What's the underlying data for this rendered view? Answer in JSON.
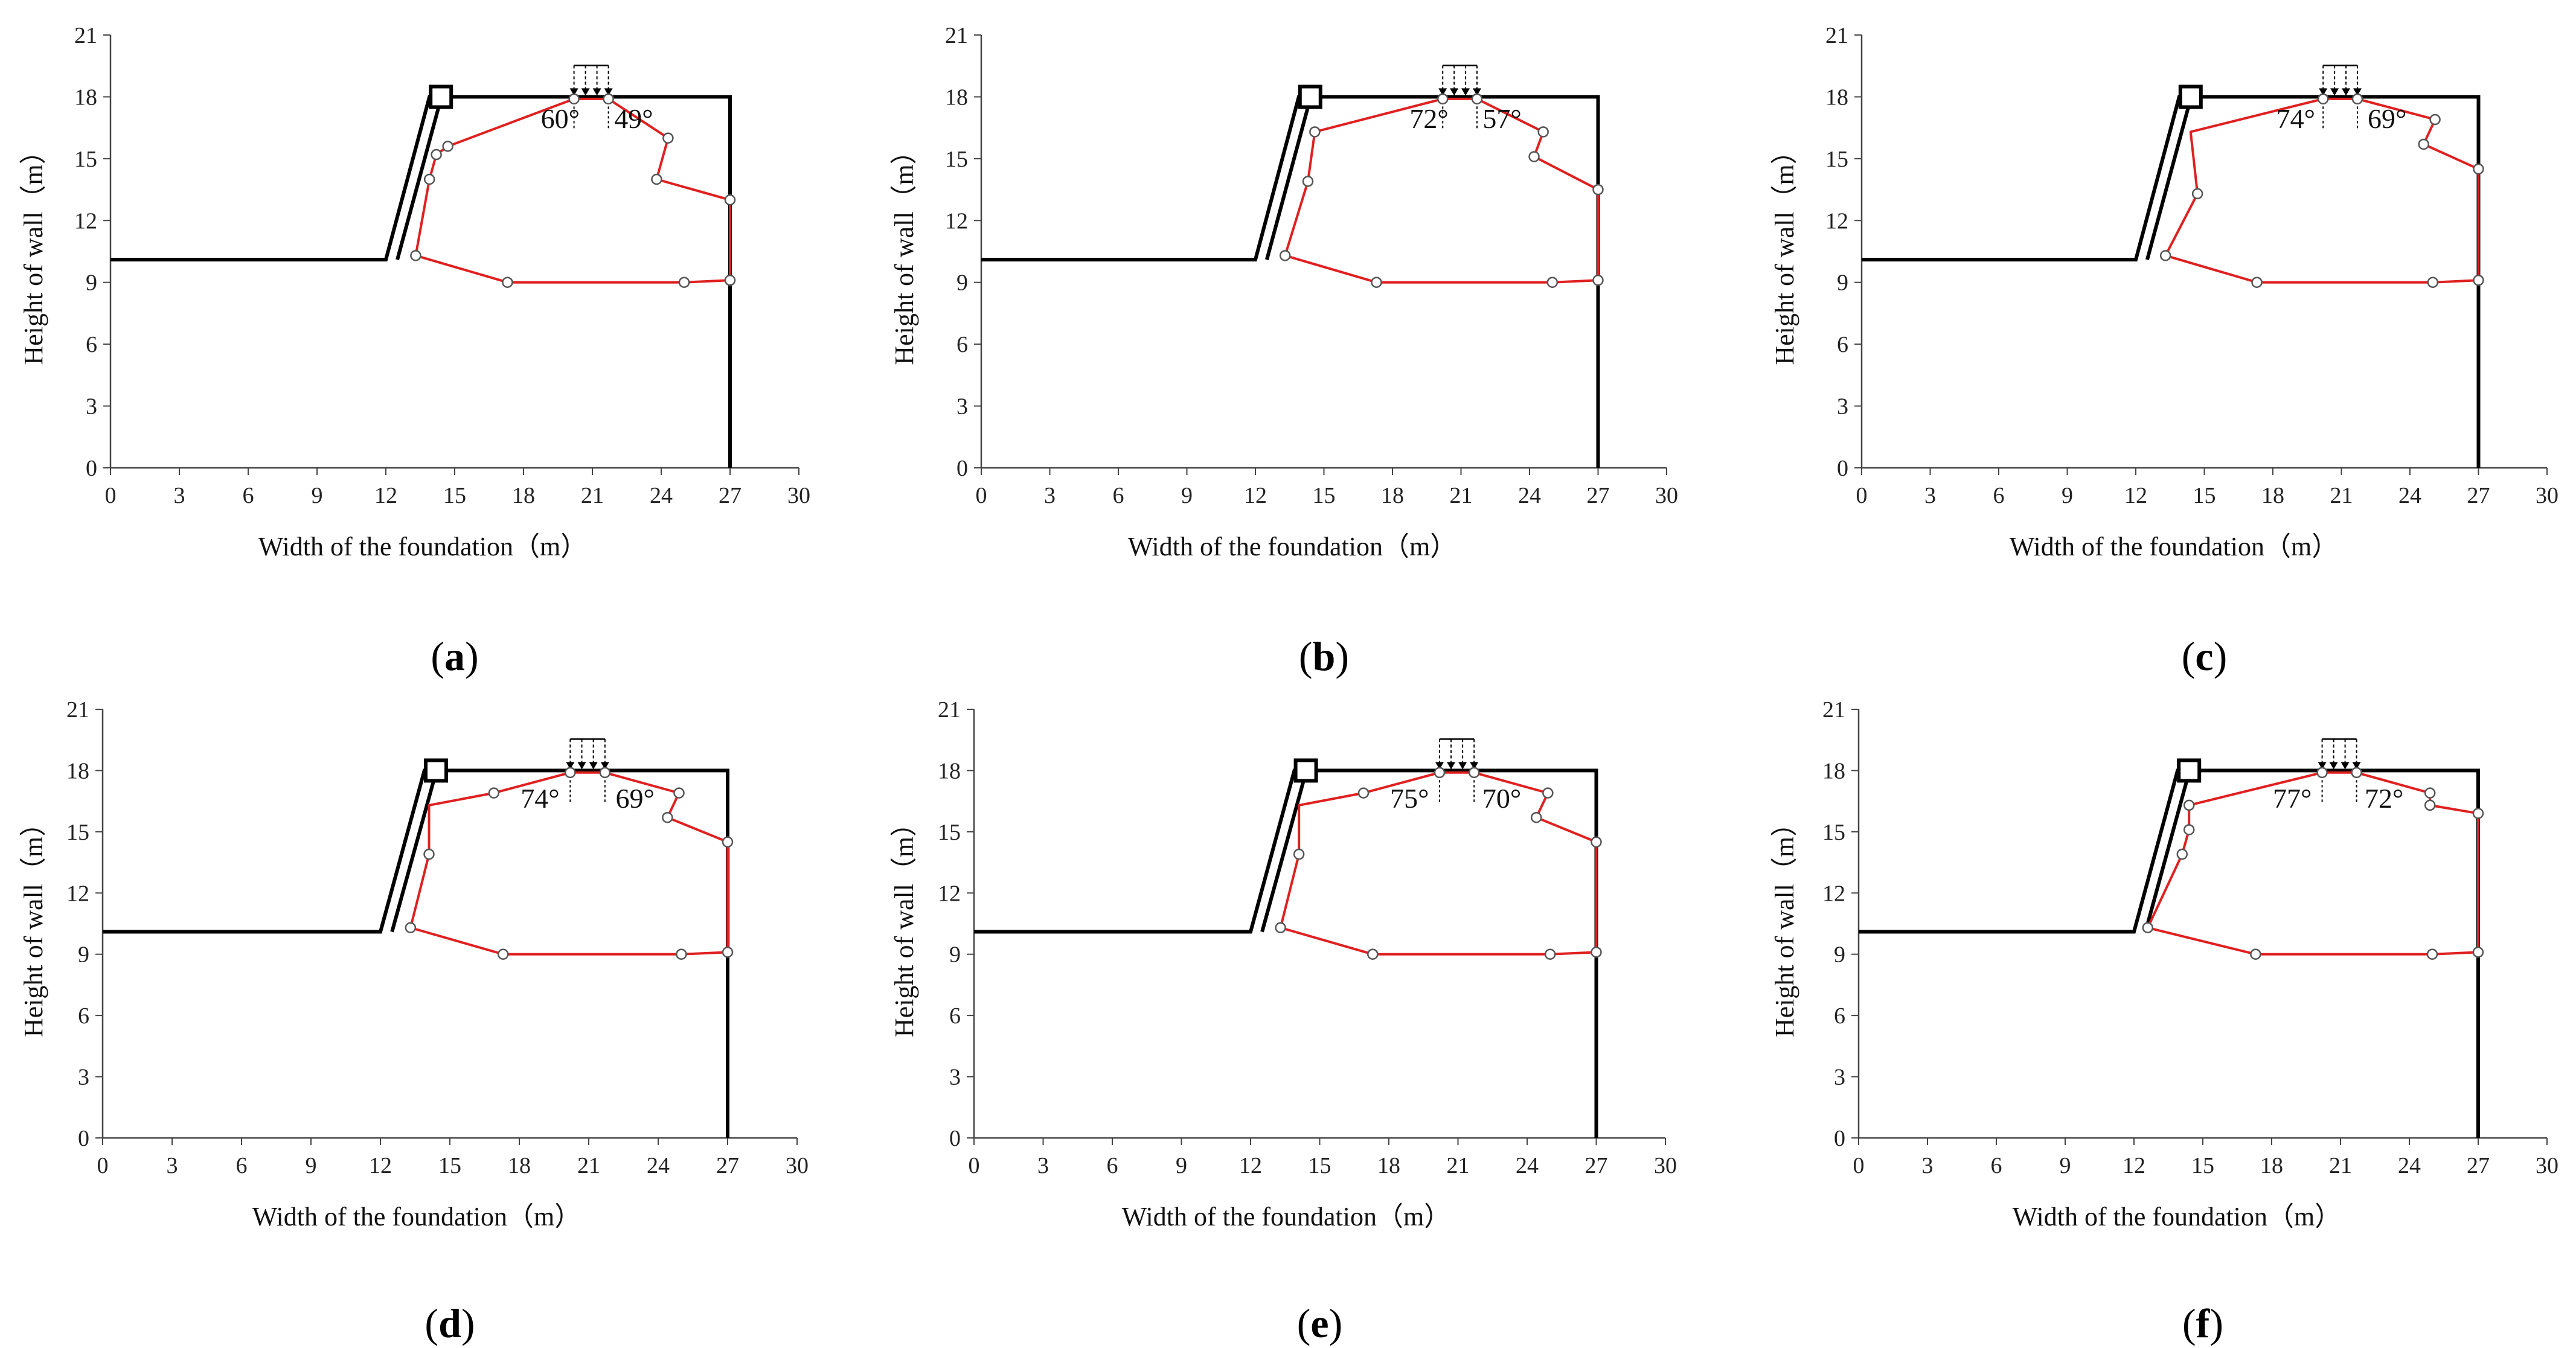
{
  "colors": {
    "structure": "#000000",
    "slip": "#e02020",
    "axis": "#444444",
    "node_fill": "#ffffff",
    "node_stroke": "#555555"
  },
  "chart_data": [
    {
      "id": "a",
      "type": "line",
      "caption_letter": "a",
      "xlabel": "Width of the foundation（m）",
      "ylabel": "Height of wall（m）",
      "xlim": [
        0,
        30
      ],
      "ylim": [
        0,
        21
      ],
      "xticks": [
        0,
        3,
        6,
        9,
        12,
        15,
        18,
        21,
        24,
        27,
        30
      ],
      "yticks": [
        0,
        3,
        6,
        9,
        12,
        15,
        18,
        21
      ],
      "angles": [
        {
          "label": "60°",
          "x": 19.6,
          "y": 16.9
        },
        {
          "label": "49°",
          "x": 22.8,
          "y": 16.9
        }
      ],
      "slip_surface": [
        [
          13.3,
          10.3
        ],
        [
          17.3,
          9.0
        ],
        [
          25.0,
          9.0
        ],
        [
          27.0,
          9.1
        ],
        [
          27.0,
          13.0
        ],
        [
          23.8,
          14.0
        ],
        [
          24.3,
          16.0
        ],
        [
          21.7,
          17.9
        ],
        [
          20.2,
          17.9
        ],
        [
          14.7,
          15.6
        ],
        [
          14.2,
          15.2
        ],
        [
          13.9,
          14.0
        ],
        [
          13.3,
          10.3
        ]
      ],
      "markers": [
        [
          13.3,
          10.3
        ],
        [
          17.3,
          9.0
        ],
        [
          25.0,
          9.0
        ],
        [
          27.0,
          9.1
        ],
        [
          27.0,
          13.0
        ],
        [
          23.8,
          14.0
        ],
        [
          24.3,
          16.0
        ],
        [
          21.7,
          17.9
        ],
        [
          20.2,
          17.9
        ],
        [
          14.7,
          15.6
        ],
        [
          14.2,
          15.2
        ],
        [
          13.9,
          14.0
        ]
      ]
    },
    {
      "id": "b",
      "type": "line",
      "caption_letter": "b",
      "xlabel": "Width of the foundation（m）",
      "ylabel": "Height of wall（m）",
      "xlim": [
        0,
        30
      ],
      "ylim": [
        0,
        21
      ],
      "xticks": [
        0,
        3,
        6,
        9,
        12,
        15,
        18,
        21,
        24,
        27,
        30
      ],
      "yticks": [
        0,
        3,
        6,
        9,
        12,
        15,
        18,
        21
      ],
      "angles": [
        {
          "label": "72°",
          "x": 19.6,
          "y": 16.9
        },
        {
          "label": "57°",
          "x": 22.8,
          "y": 16.9
        }
      ],
      "slip_surface": [
        [
          13.3,
          10.3
        ],
        [
          17.3,
          9.0
        ],
        [
          25.0,
          9.0
        ],
        [
          27.0,
          9.1
        ],
        [
          27.0,
          13.5
        ],
        [
          24.2,
          15.1
        ],
        [
          24.6,
          16.3
        ],
        [
          21.7,
          17.9
        ],
        [
          20.2,
          17.9
        ],
        [
          14.6,
          16.3
        ],
        [
          14.3,
          13.9
        ],
        [
          13.3,
          10.3
        ]
      ],
      "markers": [
        [
          13.3,
          10.3
        ],
        [
          17.3,
          9.0
        ],
        [
          25.0,
          9.0
        ],
        [
          27.0,
          9.1
        ],
        [
          27.0,
          13.5
        ],
        [
          24.2,
          15.1
        ],
        [
          24.6,
          16.3
        ],
        [
          21.7,
          17.9
        ],
        [
          20.2,
          17.9
        ],
        [
          14.6,
          16.3
        ],
        [
          14.3,
          13.9
        ]
      ]
    },
    {
      "id": "c",
      "type": "line",
      "caption_letter": "c",
      "xlabel": "Width of the foundation（m）",
      "ylabel": "Height of wall（m）",
      "xlim": [
        0,
        30
      ],
      "ylim": [
        0,
        21
      ],
      "xticks": [
        0,
        3,
        6,
        9,
        12,
        15,
        18,
        21,
        24,
        27,
        30
      ],
      "yticks": [
        0,
        3,
        6,
        9,
        12,
        15,
        18,
        21
      ],
      "angles": [
        {
          "label": "74°",
          "x": 19.0,
          "y": 16.9
        },
        {
          "label": "69°",
          "x": 23.0,
          "y": 16.9
        }
      ],
      "slip_surface": [
        [
          13.3,
          10.3
        ],
        [
          17.3,
          9.0
        ],
        [
          25.0,
          9.0
        ],
        [
          27.0,
          9.1
        ],
        [
          27.0,
          14.5
        ],
        [
          24.6,
          15.7
        ],
        [
          25.1,
          16.9
        ],
        [
          21.7,
          17.9
        ],
        [
          20.2,
          17.9
        ],
        [
          14.4,
          16.3
        ],
        [
          14.7,
          13.3
        ],
        [
          13.3,
          10.3
        ]
      ],
      "markers": [
        [
          13.3,
          10.3
        ],
        [
          17.3,
          9.0
        ],
        [
          25.0,
          9.0
        ],
        [
          27.0,
          9.1
        ],
        [
          27.0,
          14.5
        ],
        [
          24.6,
          15.7
        ],
        [
          25.1,
          16.9
        ],
        [
          21.7,
          17.9
        ],
        [
          20.2,
          17.9
        ],
        [
          14.7,
          13.3
        ]
      ]
    },
    {
      "id": "d",
      "type": "line",
      "caption_letter": "d",
      "xlabel": "Width of the foundation（m）",
      "ylabel": "Height of wall（m）",
      "xlim": [
        0,
        30
      ],
      "ylim": [
        0,
        21
      ],
      "xticks": [
        0,
        3,
        6,
        9,
        12,
        15,
        18,
        21,
        24,
        27,
        30
      ],
      "yticks": [
        0,
        3,
        6,
        9,
        12,
        15,
        18,
        21
      ],
      "angles": [
        {
          "label": "74°",
          "x": 18.9,
          "y": 16.6
        },
        {
          "label": "69°",
          "x": 23.0,
          "y": 16.6
        }
      ],
      "slip_surface": [
        [
          13.3,
          10.3
        ],
        [
          17.3,
          9.0
        ],
        [
          25.0,
          9.0
        ],
        [
          27.0,
          9.1
        ],
        [
          27.0,
          14.5
        ],
        [
          24.4,
          15.7
        ],
        [
          24.9,
          16.9
        ],
        [
          21.7,
          17.9
        ],
        [
          20.2,
          17.9
        ],
        [
          16.9,
          16.9
        ],
        [
          14.1,
          16.3
        ],
        [
          14.1,
          13.9
        ],
        [
          13.3,
          10.3
        ]
      ],
      "markers": [
        [
          13.3,
          10.3
        ],
        [
          17.3,
          9.0
        ],
        [
          25.0,
          9.0
        ],
        [
          27.0,
          9.1
        ],
        [
          27.0,
          14.5
        ],
        [
          24.4,
          15.7
        ],
        [
          24.9,
          16.9
        ],
        [
          21.7,
          17.9
        ],
        [
          20.2,
          17.9
        ],
        [
          16.9,
          16.9
        ],
        [
          14.1,
          13.9
        ]
      ]
    },
    {
      "id": "e",
      "type": "line",
      "caption_letter": "e",
      "xlabel": "Width of the foundation（m）",
      "ylabel": "Height of wall（m）",
      "xlim": [
        0,
        30
      ],
      "ylim": [
        0,
        21
      ],
      "xticks": [
        0,
        3,
        6,
        9,
        12,
        15,
        18,
        21,
        24,
        27,
        30
      ],
      "yticks": [
        0,
        3,
        6,
        9,
        12,
        15,
        18,
        21
      ],
      "angles": [
        {
          "label": "75°",
          "x": 18.9,
          "y": 16.6
        },
        {
          "label": "70°",
          "x": 22.9,
          "y": 16.6
        }
      ],
      "slip_surface": [
        [
          13.3,
          10.3
        ],
        [
          17.3,
          9.0
        ],
        [
          25.0,
          9.0
        ],
        [
          27.0,
          9.1
        ],
        [
          27.0,
          14.5
        ],
        [
          24.4,
          15.7
        ],
        [
          24.9,
          16.9
        ],
        [
          21.7,
          17.9
        ],
        [
          20.2,
          17.9
        ],
        [
          16.9,
          16.9
        ],
        [
          14.1,
          16.3
        ],
        [
          14.1,
          13.9
        ],
        [
          13.3,
          10.3
        ]
      ],
      "markers": [
        [
          13.3,
          10.3
        ],
        [
          17.3,
          9.0
        ],
        [
          25.0,
          9.0
        ],
        [
          27.0,
          9.1
        ],
        [
          27.0,
          14.5
        ],
        [
          24.4,
          15.7
        ],
        [
          24.9,
          16.9
        ],
        [
          21.7,
          17.9
        ],
        [
          20.2,
          17.9
        ],
        [
          16.9,
          16.9
        ],
        [
          14.1,
          13.9
        ]
      ]
    },
    {
      "id": "f",
      "type": "line",
      "caption_letter": "f",
      "xlabel": "Width of the foundation（m）",
      "ylabel": "Height of wall（m）",
      "xlim": [
        0,
        30
      ],
      "ylim": [
        0,
        21
      ],
      "xticks": [
        0,
        3,
        6,
        9,
        12,
        15,
        18,
        21,
        24,
        27,
        30
      ],
      "yticks": [
        0,
        3,
        6,
        9,
        12,
        15,
        18,
        21
      ],
      "angles": [
        {
          "label": "77°",
          "x": 18.9,
          "y": 16.6
        },
        {
          "label": "72°",
          "x": 22.9,
          "y": 16.6
        }
      ],
      "slip_surface": [
        [
          12.6,
          10.3
        ],
        [
          17.3,
          9.0
        ],
        [
          25.0,
          9.0
        ],
        [
          27.0,
          9.1
        ],
        [
          27.0,
          15.9
        ],
        [
          24.9,
          16.3
        ],
        [
          24.9,
          16.9
        ],
        [
          21.7,
          17.9
        ],
        [
          20.2,
          17.9
        ],
        [
          14.4,
          16.3
        ],
        [
          14.4,
          15.1
        ],
        [
          14.1,
          13.9
        ],
        [
          12.6,
          10.3
        ]
      ],
      "markers": [
        [
          12.6,
          10.3
        ],
        [
          17.3,
          9.0
        ],
        [
          25.0,
          9.0
        ],
        [
          27.0,
          9.1
        ],
        [
          27.0,
          15.9
        ],
        [
          24.9,
          16.3
        ],
        [
          24.9,
          16.9
        ],
        [
          21.7,
          17.9
        ],
        [
          20.2,
          17.9
        ],
        [
          14.4,
          16.3
        ],
        [
          14.4,
          15.1
        ],
        [
          14.1,
          13.9
        ]
      ]
    }
  ]
}
